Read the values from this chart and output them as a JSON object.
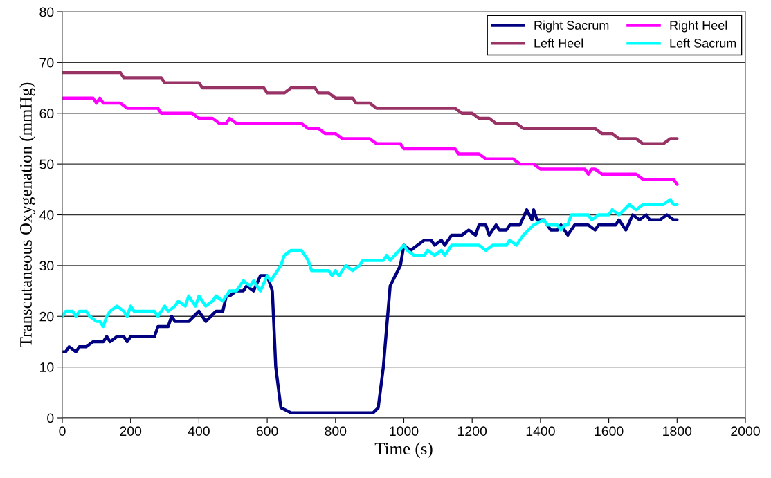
{
  "chart_data": {
    "type": "line",
    "xlabel": "Time (s)",
    "ylabel": "Transcutaneous Oxygenation (mmHg)",
    "xlim": [
      0,
      2000
    ],
    "xticks": [
      0,
      200,
      400,
      600,
      800,
      1000,
      1200,
      1400,
      1600,
      1800,
      2000
    ],
    "ylim": [
      0,
      80
    ],
    "yticks": [
      0,
      10,
      20,
      30,
      40,
      50,
      60,
      70,
      80
    ],
    "grid": "y",
    "legend": "top right",
    "marker": "none",
    "line_style": "solid",
    "series": [
      {
        "name": "Right Sacrum",
        "color": "#000080",
        "x": [
          0,
          10,
          20,
          40,
          50,
          70,
          90,
          120,
          130,
          140,
          160,
          180,
          190,
          200,
          270,
          280,
          310,
          320,
          330,
          370,
          400,
          420,
          450,
          470,
          480,
          490,
          510,
          530,
          540,
          560,
          580,
          600,
          615,
          625,
          640,
          670,
          910,
          925,
          940,
          960,
          990,
          1000,
          1020,
          1040,
          1060,
          1080,
          1090,
          1110,
          1120,
          1140,
          1170,
          1190,
          1210,
          1220,
          1240,
          1250,
          1270,
          1280,
          1300,
          1310,
          1340,
          1360,
          1375,
          1380,
          1390,
          1410,
          1430,
          1450,
          1460,
          1480,
          1500,
          1540,
          1560,
          1570,
          1620,
          1630,
          1650,
          1670,
          1690,
          1710,
          1720,
          1750,
          1770,
          1790,
          1800
        ],
        "values": [
          13,
          13,
          14,
          13,
          14,
          14,
          15,
          15,
          16,
          15,
          16,
          16,
          15,
          16,
          16,
          18,
          18,
          20,
          19,
          19,
          21,
          19,
          21,
          21,
          24,
          24,
          25,
          25,
          26,
          25,
          28,
          28,
          25,
          10,
          2,
          1,
          1,
          2,
          10,
          26,
          30,
          34,
          33,
          34,
          35,
          35,
          34,
          35,
          34,
          36,
          36,
          37,
          36,
          38,
          38,
          36,
          38,
          37,
          37,
          38,
          38,
          41,
          39,
          41,
          39,
          39,
          37,
          37,
          38,
          36,
          38,
          38,
          37,
          38,
          38,
          39,
          37,
          40,
          39,
          40,
          39,
          39,
          40,
          39,
          39
        ]
      },
      {
        "name": "Left Heel",
        "color": "#993366",
        "x": [
          0,
          170,
          180,
          290,
          300,
          400,
          410,
          590,
          600,
          650,
          670,
          740,
          750,
          780,
          800,
          850,
          860,
          900,
          920,
          1150,
          1170,
          1200,
          1220,
          1250,
          1270,
          1330,
          1350,
          1560,
          1580,
          1610,
          1630,
          1680,
          1700,
          1760,
          1780,
          1800
        ],
        "values": [
          68,
          68,
          67,
          67,
          66,
          66,
          65,
          65,
          64,
          64,
          65,
          65,
          64,
          64,
          63,
          63,
          62,
          62,
          61,
          61,
          60,
          60,
          59,
          59,
          58,
          58,
          57,
          57,
          56,
          56,
          55,
          55,
          54,
          54,
          55,
          55
        ]
      },
      {
        "name": "Right Heel",
        "color": "#ff00ff",
        "x": [
          0,
          90,
          100,
          110,
          120,
          170,
          190,
          280,
          290,
          380,
          400,
          440,
          460,
          480,
          490,
          510,
          700,
          720,
          750,
          770,
          800,
          820,
          900,
          920,
          990,
          1000,
          1150,
          1160,
          1220,
          1240,
          1320,
          1340,
          1380,
          1400,
          1530,
          1540,
          1550,
          1560,
          1580,
          1680,
          1700,
          1790,
          1800
        ],
        "values": [
          63,
          63,
          62,
          63,
          62,
          62,
          61,
          61,
          60,
          60,
          59,
          59,
          58,
          58,
          59,
          58,
          58,
          57,
          57,
          56,
          56,
          55,
          55,
          54,
          54,
          53,
          53,
          52,
          52,
          51,
          51,
          50,
          50,
          49,
          49,
          48,
          49,
          49,
          48,
          48,
          47,
          47,
          46
        ]
      },
      {
        "name": "Left Sacrum",
        "color": "#00ffff",
        "x": [
          0,
          10,
          30,
          40,
          50,
          70,
          80,
          100,
          110,
          120,
          130,
          140,
          160,
          180,
          190,
          200,
          210,
          270,
          280,
          300,
          310,
          330,
          340,
          360,
          370,
          390,
          400,
          420,
          440,
          450,
          470,
          490,
          510,
          530,
          550,
          560,
          580,
          600,
          610,
          630,
          640,
          650,
          670,
          700,
          720,
          730,
          780,
          790,
          800,
          810,
          830,
          850,
          870,
          880,
          900,
          940,
          950,
          960,
          1000,
          1010,
          1030,
          1060,
          1070,
          1090,
          1110,
          1120,
          1140,
          1220,
          1240,
          1260,
          1300,
          1310,
          1330,
          1350,
          1380,
          1410,
          1420,
          1450,
          1460,
          1470,
          1480,
          1490,
          1540,
          1550,
          1570,
          1600,
          1610,
          1630,
          1660,
          1680,
          1700,
          1760,
          1780,
          1790,
          1800
        ],
        "values": [
          20,
          21,
          21,
          20,
          21,
          21,
          20,
          19,
          19,
          18,
          20,
          21,
          22,
          21,
          20,
          22,
          21,
          21,
          20,
          22,
          21,
          22,
          23,
          22,
          24,
          22,
          24,
          22,
          23,
          24,
          23,
          25,
          25,
          27,
          26,
          27,
          25,
          28,
          27,
          29,
          30,
          32,
          33,
          33,
          31,
          29,
          29,
          28,
          29,
          28,
          30,
          29,
          30,
          31,
          31,
          31,
          32,
          31,
          34,
          33,
          32,
          32,
          33,
          32,
          33,
          32,
          34,
          34,
          33,
          34,
          34,
          35,
          34,
          36,
          38,
          39,
          38,
          38,
          37,
          38,
          38,
          40,
          40,
          39,
          40,
          40,
          41,
          40,
          42,
          41,
          42,
          42,
          43,
          42,
          42
        ]
      }
    ]
  }
}
